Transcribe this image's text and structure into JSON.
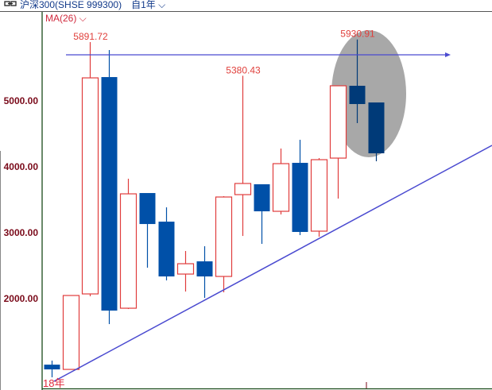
{
  "header": {
    "link_icon": "link-icon",
    "instrument": "沪深300(SHSE 999300)",
    "period": "自1年",
    "period_dropdown_icon": "chevron-down-icon"
  },
  "indicator": {
    "label": "MA(26)",
    "dropdown_icon": "chevron-down-icon"
  },
  "colors": {
    "up": "#e03c3c",
    "down": "#0050a8",
    "down_latest": "#003a78",
    "annotation_line": "#4a4ad0",
    "highlight": "#a8a8a8",
    "axis": "#1a4a1a",
    "axis_labels": "#7a0a1a"
  },
  "chart_data": {
    "type": "candlestick",
    "ylim": [
      820,
      6200
    ],
    "yticks": [
      "2000.00",
      "3000.00",
      "4000.00",
      "5000.00"
    ],
    "ytick_values": [
      2000,
      3000,
      4000,
      5000
    ],
    "xlabel_first": "18年",
    "candles": [
      {
        "o": 999,
        "h": 1060,
        "l": 807,
        "c": 927
      },
      {
        "o": 927,
        "h": 2048,
        "l": 927,
        "c": 2048
      },
      {
        "o": 2072,
        "h": 5891.72,
        "l": 2036,
        "c": 5349
      },
      {
        "o": 5361,
        "h": 5771,
        "l": 1614,
        "c": 1819
      },
      {
        "o": 1855,
        "h": 3819,
        "l": 1843,
        "c": 3590
      },
      {
        "o": 3602,
        "h": 3602,
        "l": 2470,
        "c": 3132
      },
      {
        "o": 3168,
        "h": 3385,
        "l": 2277,
        "c": 2337
      },
      {
        "o": 2373,
        "h": 2723,
        "l": 2108,
        "c": 2530
      },
      {
        "o": 2566,
        "h": 2795,
        "l": 2012,
        "c": 2337
      },
      {
        "o": 2337,
        "h": 3554,
        "l": 2096,
        "c": 3542
      },
      {
        "o": 3578,
        "h": 5380.43,
        "l": 2951,
        "c": 3747
      },
      {
        "o": 3735,
        "h": 3735,
        "l": 2831,
        "c": 3325
      },
      {
        "o": 3325,
        "h": 4277,
        "l": 3277,
        "c": 4048
      },
      {
        "o": 4060,
        "h": 4410,
        "l": 2964,
        "c": 3012
      },
      {
        "o": 3024,
        "h": 4132,
        "l": 2940,
        "c": 4108
      },
      {
        "o": 4132,
        "h": 5229,
        "l": 3518,
        "c": 5229
      },
      {
        "o": 5229,
        "h": 5930.91,
        "l": 4663,
        "c": 4952
      },
      {
        "o": 4976,
        "h": 4976,
        "l": 4084,
        "c": 4205
      }
    ],
    "high_labels": [
      "5891.72",
      "5380.43",
      "5930.91"
    ],
    "high_label_candles": [
      2,
      10,
      16
    ],
    "annotations": [
      {
        "type": "horizontal-arrow-line",
        "value": 5700
      },
      {
        "type": "trend-line"
      },
      {
        "type": "ellipse-highlight",
        "around_candles": [
          15,
          17
        ]
      }
    ]
  }
}
